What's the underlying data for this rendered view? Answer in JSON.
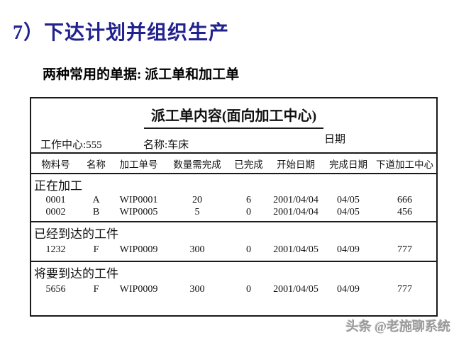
{
  "slide": {
    "title": "7）下达计划并组织生产",
    "subtitle": "两种常用的单据: 派工单和加工单"
  },
  "document": {
    "title": "派工单内容(面向加工中心)",
    "work_center": "工作中心:555",
    "machine_name": "名称:车床",
    "date_label": "日期",
    "columns": [
      "物料号",
      "名称",
      "加工单号",
      "数量需完成",
      "已完成",
      "开始日期",
      "完成日期",
      "下道加工中心"
    ],
    "sections": [
      {
        "label": "正在加工",
        "rows": [
          [
            "0001",
            "A",
            "WIP0001",
            "20",
            "6",
            "2001/04/04",
            "04/05",
            "666"
          ],
          [
            "0002",
            "B",
            "WIP0005",
            "5",
            "0",
            "2001/04/04",
            "04/05",
            "456"
          ]
        ]
      },
      {
        "label": "已经到达的工件",
        "rows": [
          [
            "1232",
            "F",
            "WIP0009",
            "300",
            "0",
            "2001/04/05",
            "04/09",
            "777"
          ]
        ]
      },
      {
        "label": "将要到达的工件",
        "rows": [
          [
            "5656",
            "F",
            "WIP0009",
            "300",
            "0",
            "2001/04/05",
            "04/09",
            "777"
          ]
        ]
      }
    ]
  },
  "watermark": "头条 @老施聊系统",
  "colors": {
    "title_navy": "#22228E",
    "text_black": "#000000",
    "watermark_gray": "#9a9a9a",
    "background": "#ffffff"
  }
}
